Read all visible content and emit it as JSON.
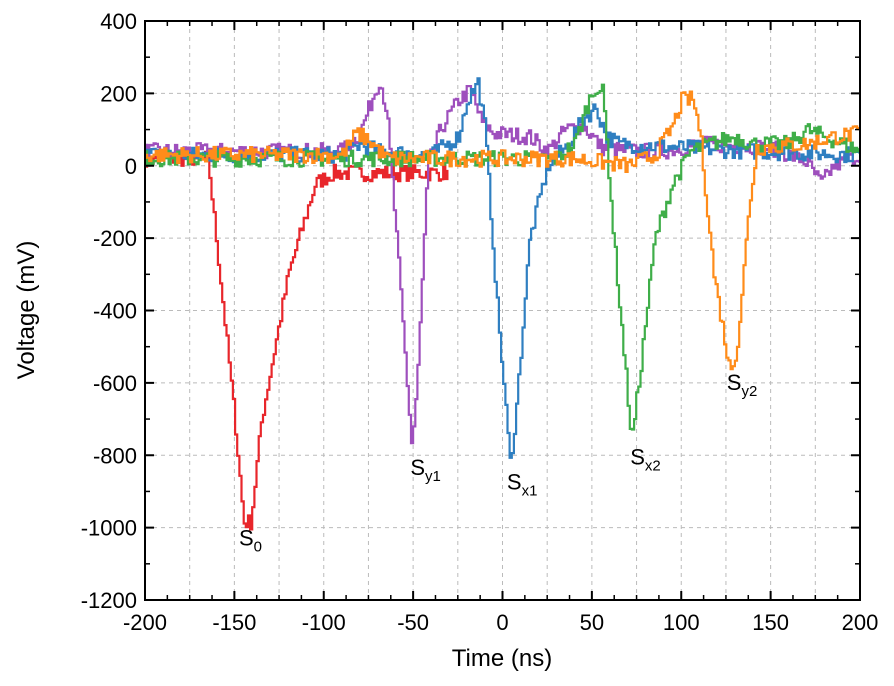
{
  "chart_data": {
    "type": "line",
    "title": "",
    "xlabel": "Time (ns)",
    "ylabel": "Voltage (mV)",
    "xlim": [
      -200,
      200
    ],
    "ylim": [
      -1200,
      400
    ],
    "xticks": [
      -200,
      -150,
      -100,
      -50,
      0,
      50,
      100,
      150,
      200
    ],
    "yticks": [
      400,
      200,
      0,
      -200,
      -400,
      -600,
      -800,
      -1000,
      -1200
    ],
    "grid": true,
    "legend": "none",
    "series": [
      {
        "name": "S0",
        "color": "#e8262b",
        "points": [
          [
            -200,
            20
          ],
          [
            -165,
            20
          ],
          [
            -150,
            -700
          ],
          [
            -145,
            -985
          ],
          [
            -141,
            -985
          ],
          [
            -135,
            -700
          ],
          [
            -120,
            -300
          ],
          [
            -105,
            -50
          ],
          [
            -95,
            -20
          ],
          [
            -30,
            -20
          ]
        ]
      },
      {
        "name": "Sy1",
        "color": "#9e4fbd",
        "points": [
          [
            -200,
            40
          ],
          [
            -90,
            40
          ],
          [
            -80,
            90
          ],
          [
            -72,
            200
          ],
          [
            -69,
            240
          ],
          [
            -65,
            150
          ],
          [
            -58,
            -300
          ],
          [
            -51,
            -780
          ],
          [
            -48,
            -600
          ],
          [
            -42,
            0
          ],
          [
            -35,
            100
          ],
          [
            -25,
            180
          ],
          [
            -18,
            210
          ],
          [
            -12,
            120
          ],
          [
            -5,
            90
          ],
          [
            15,
            80
          ],
          [
            25,
            40
          ],
          [
            35,
            100
          ],
          [
            45,
            110
          ],
          [
            55,
            50
          ],
          [
            70,
            40
          ],
          [
            90,
            40
          ],
          [
            110,
            60
          ],
          [
            150,
            50
          ],
          [
            170,
            10
          ],
          [
            178,
            -50
          ],
          [
            185,
            0
          ],
          [
            200,
            30
          ]
        ]
      },
      {
        "name": "Sx1",
        "color": "#2f7fc1",
        "points": [
          [
            -200,
            30
          ],
          [
            -90,
            30
          ],
          [
            -80,
            60
          ],
          [
            -70,
            40
          ],
          [
            -40,
            30
          ],
          [
            -25,
            80
          ],
          [
            -20,
            180
          ],
          [
            -14,
            230
          ],
          [
            -10,
            100
          ],
          [
            -3,
            -400
          ],
          [
            4,
            -820
          ],
          [
            7,
            -700
          ],
          [
            15,
            -200
          ],
          [
            25,
            0
          ],
          [
            35,
            50
          ],
          [
            45,
            130
          ],
          [
            52,
            160
          ],
          [
            58,
            80
          ],
          [
            65,
            60
          ],
          [
            100,
            50
          ],
          [
            140,
            40
          ],
          [
            200,
            30
          ]
        ]
      },
      {
        "name": "Sx2",
        "color": "#3fae49",
        "points": [
          [
            -200,
            20
          ],
          [
            30,
            20
          ],
          [
            40,
            60
          ],
          [
            48,
            180
          ],
          [
            52,
            220
          ],
          [
            56,
            200
          ],
          [
            62,
            -200
          ],
          [
            72,
            -760
          ],
          [
            76,
            -600
          ],
          [
            85,
            -200
          ],
          [
            95,
            -50
          ],
          [
            105,
            40
          ],
          [
            115,
            60
          ],
          [
            130,
            80
          ],
          [
            140,
            60
          ],
          [
            160,
            60
          ],
          [
            170,
            100
          ],
          [
            200,
            40
          ]
        ]
      },
      {
        "name": "Sy2",
        "color": "#ff8c1a",
        "points": [
          [
            -200,
            30
          ],
          [
            -90,
            30
          ],
          [
            -82,
            90
          ],
          [
            -75,
            70
          ],
          [
            -65,
            20
          ],
          [
            -20,
            20
          ],
          [
            40,
            20
          ],
          [
            70,
            0
          ],
          [
            85,
            30
          ],
          [
            95,
            110
          ],
          [
            100,
            180
          ],
          [
            106,
            185
          ],
          [
            110,
            100
          ],
          [
            118,
            -300
          ],
          [
            127,
            -570
          ],
          [
            131,
            -500
          ],
          [
            138,
            -100
          ],
          [
            142,
            50
          ],
          [
            170,
            60
          ],
          [
            185,
            80
          ],
          [
            200,
            90
          ]
        ]
      }
    ],
    "annotations": [
      {
        "base": "S",
        "sub": "0",
        "x": -141,
        "y": -1050
      },
      {
        "base": "S",
        "sub": "y1",
        "x": -43,
        "y": -855
      },
      {
        "base": "S",
        "sub": "x1",
        "x": 11,
        "y": -895
      },
      {
        "base": "S",
        "sub": "x2",
        "x": 80,
        "y": -825
      },
      {
        "base": "S",
        "sub": "y2",
        "x": 134,
        "y": -620
      }
    ]
  }
}
